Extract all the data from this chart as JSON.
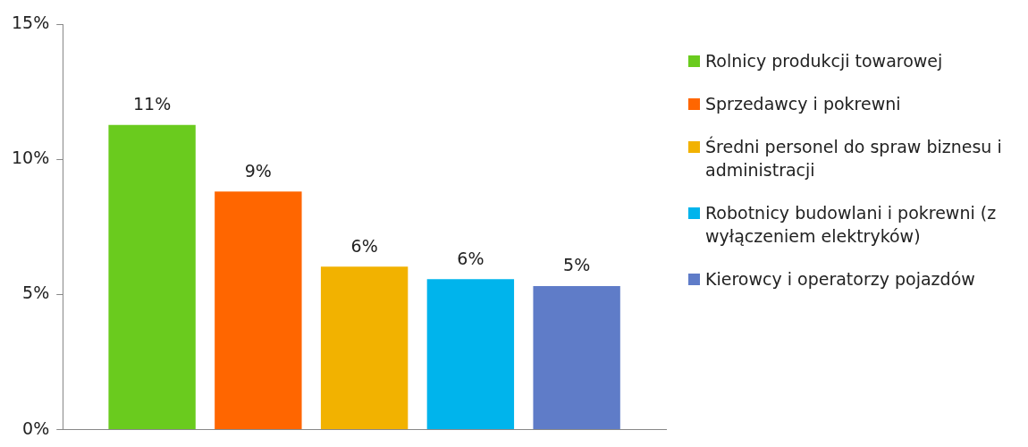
{
  "chart_data": {
    "type": "bar",
    "categories": [
      null
    ],
    "series": [
      {
        "name": "Rolnicy produkcji towarowej",
        "color": "#6acb1e",
        "values": [
          11.27
        ],
        "value_labels": [
          "11%"
        ]
      },
      {
        "name": "Sprzedawcy i pokrewni",
        "color": "#ff6600",
        "values": [
          8.81
        ],
        "value_labels": [
          "9%"
        ]
      },
      {
        "name": "Średni personel do spraw biznesu i administracji",
        "color": "#f2b200",
        "values": [
          6.03
        ],
        "value_labels": [
          "6%"
        ]
      },
      {
        "name": "Robotnicy budowlani i pokrewni (z wyłączeniem elektryków)",
        "color": "#00b4ec",
        "values": [
          5.57
        ],
        "value_labels": [
          "6%"
        ]
      },
      {
        "name": "Kierowcy i operatorzy pojazdów",
        "color": "#5f7cc8",
        "values": [
          5.31
        ],
        "value_labels": [
          "5%"
        ]
      }
    ],
    "ylim": [
      0,
      15
    ],
    "yticks": [
      {
        "value": 0,
        "label": "0%"
      },
      {
        "value": 5,
        "label": "5%"
      },
      {
        "value": 10,
        "label": "10%"
      },
      {
        "value": 15,
        "label": "15%"
      }
    ],
    "grid": false,
    "legend": "right"
  }
}
